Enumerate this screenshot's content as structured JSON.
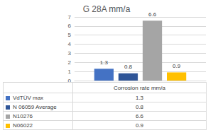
{
  "chart_data": {
    "type": "bar",
    "title": "G 28A mm/a",
    "categories": [
      "Corrosion rate mm/a"
    ],
    "series": [
      {
        "name": "VdTÜV max",
        "color": "#4472c4",
        "values": [
          1.3
        ]
      },
      {
        "name": "N 06059 Average",
        "color": "#2f5597",
        "values": [
          0.8
        ]
      },
      {
        "name": "N10276",
        "color": "#a5a5a5",
        "values": [
          6.6
        ]
      },
      {
        "name": "N06022",
        "color": "#ffc000",
        "values": [
          0.9
        ]
      }
    ],
    "ylim": [
      0,
      7
    ],
    "yticks": [
      0,
      1,
      2,
      3,
      4,
      5,
      6,
      7
    ],
    "grid": true,
    "data_labels": true
  }
}
